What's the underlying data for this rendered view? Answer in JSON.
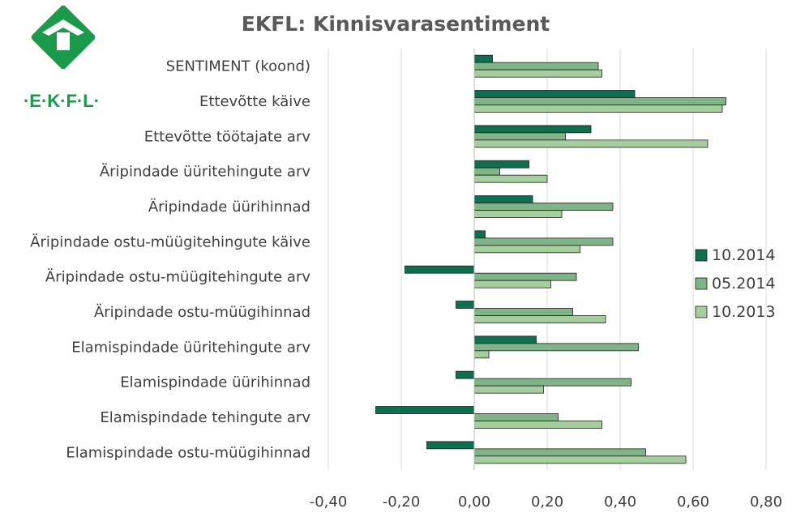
{
  "logo": {
    "text": "·E·K·F·L·",
    "color": "#1a9a4a"
  },
  "chart_data": {
    "type": "bar",
    "orientation": "horizontal",
    "title": "EKFL: Kinnisvarasentiment",
    "categories": [
      "SENTIMENT (koond)",
      "Ettevõtte käive",
      "Ettevõtte töötajate arv",
      "Äripindade üüritehingute arv",
      "Äripindade üürihinnad",
      "Äripindade ostu-müügitehingute käive",
      "Äripindade ostu-müügitehingute arv",
      "Äripindade ostu-müügihinnad",
      "Elamispindade üüritehingute arv",
      "Elamispindade üürihinnad",
      "Elamispindade tehingute arv",
      "Elamispindade ostu-müügihinnad"
    ],
    "series": [
      {
        "name": "10.2014",
        "color": "#0f6e4f",
        "values": [
          0.05,
          0.44,
          0.32,
          0.15,
          0.16,
          0.03,
          -0.19,
          -0.05,
          0.17,
          -0.05,
          -0.27,
          -0.13
        ]
      },
      {
        "name": "05.2014",
        "color": "#7fb586",
        "values": [
          0.34,
          0.69,
          0.25,
          0.07,
          0.38,
          0.38,
          0.28,
          0.27,
          0.45,
          0.43,
          0.23,
          0.47
        ]
      },
      {
        "name": "10.2013",
        "color": "#a5cd9d",
        "values": [
          0.35,
          0.68,
          0.64,
          0.2,
          0.24,
          0.29,
          0.21,
          0.36,
          0.04,
          0.19,
          0.35,
          0.58
        ]
      }
    ],
    "xlim": [
      -0.4,
      0.8
    ],
    "xticks": [
      "-0,40",
      "-0,20",
      "0,00",
      "0,20",
      "0,40",
      "0,60",
      "0,80"
    ],
    "xtick_values": [
      -0.4,
      -0.2,
      0,
      0.2,
      0.4,
      0.6,
      0.8
    ],
    "grid": "vertical",
    "legend_position": "right"
  }
}
